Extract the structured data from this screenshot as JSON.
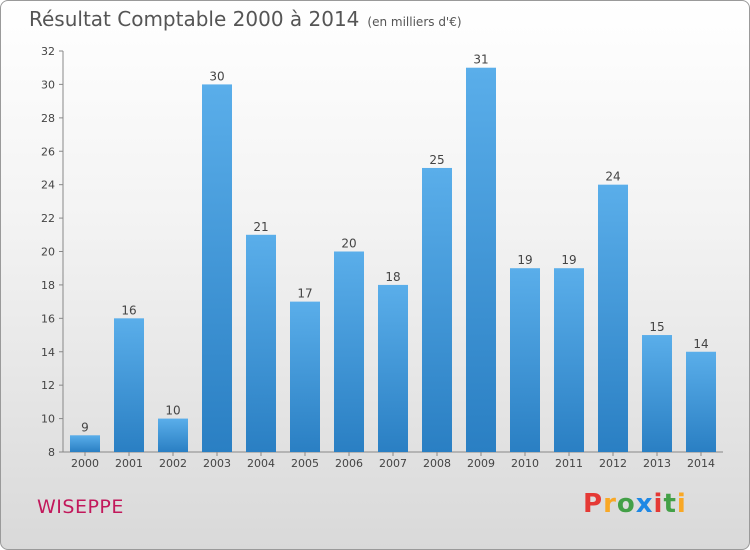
{
  "title": "Résultat Comptable 2000 à 2014",
  "subtitle": "(en milliers d'€)",
  "commune": "WISEPPE",
  "logo": {
    "letters": [
      "P",
      "r",
      "o",
      "x",
      "i",
      "t",
      "i"
    ],
    "colors": [
      "#e53935",
      "#f9a825",
      "#43a047",
      "#1e88e5",
      "#e53935",
      "#43a047",
      "#f9a825"
    ]
  },
  "chart_data": {
    "type": "bar",
    "title": "Résultat Comptable 2000 à 2014 (en milliers d'€)",
    "categories": [
      "2000",
      "2001",
      "2002",
      "2003",
      "2004",
      "2005",
      "2006",
      "2007",
      "2008",
      "2009",
      "2010",
      "2011",
      "2012",
      "2013",
      "2014"
    ],
    "values": [
      9,
      16,
      10,
      30,
      21,
      17,
      20,
      18,
      25,
      31,
      19,
      19,
      24,
      15,
      14
    ],
    "ylim": [
      8,
      32
    ],
    "yticks": [
      8,
      10,
      12,
      14,
      16,
      18,
      20,
      22,
      24,
      26,
      28,
      30,
      32
    ],
    "xlabel": "",
    "ylabel": "",
    "grid": false,
    "bar_color": "#3d93d8"
  }
}
